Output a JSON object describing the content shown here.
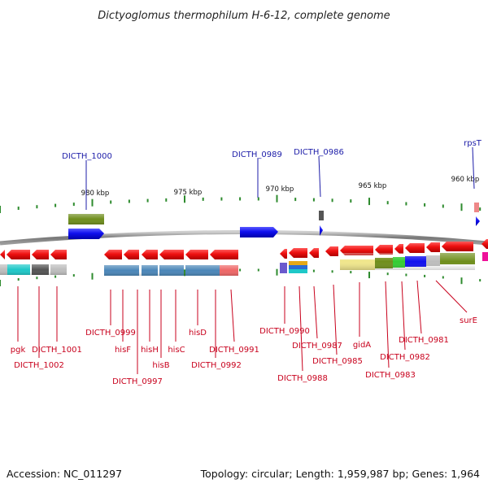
{
  "header": {
    "title": "Dictyoglomus thermophilum H-6-12, complete genome"
  },
  "footer": {
    "accession": "Accession: NC_011297",
    "summary": "Topology: circular; Length: 1,959,987 bp; Genes: 1,964"
  },
  "axis": {
    "ticks": [
      "980 kbp",
      "975 kbp",
      "970 kbp",
      "965 kbp",
      "960 kbp"
    ]
  },
  "labels_top": [
    "DICTH_1000",
    "DICTH_0989",
    "DICTH_0986",
    "rpsT"
  ],
  "labels_bottom": [
    "pgk",
    "DICTH_1002",
    "DICTH_1001",
    "DICTH_0999",
    "hisF",
    "DICTH_0997",
    "hisH",
    "hisB",
    "hisC",
    "hisD",
    "DICTH_0992",
    "DICTH_0991",
    "DICTH_0990",
    "DICTH_0988",
    "DICTH_0987",
    "DICTH_0985",
    "gidA",
    "DICTH_0983",
    "DICTH_0982",
    "DICTH_0981",
    "surE"
  ],
  "colors": {
    "forward_gene": "#1010ee",
    "reverse_gene": "#ee1111",
    "top_label": "#1c1ca8",
    "bottom_label": "#c8001c",
    "tick": "#2e8b2e",
    "backbone": "#888888"
  }
}
